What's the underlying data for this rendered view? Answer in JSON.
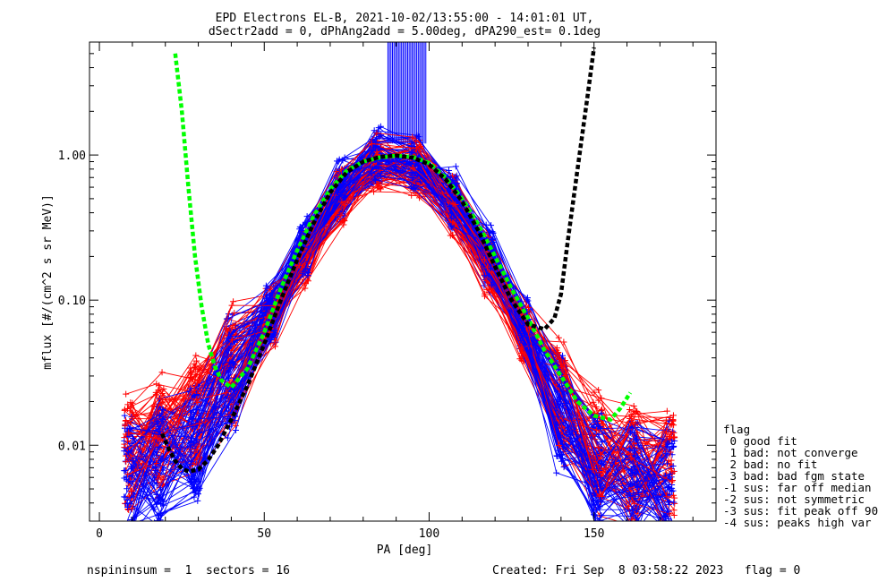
{
  "header": {
    "title": "EPD Electrons EL-B, 2021-10-02/13:55:00 - 14:01:01 UT,",
    "subtitle": "dSectr2add = 0, dPhAng2add = 5.00deg, dPA290_est=   0.1deg"
  },
  "footer": {
    "left": "nspininsum =  1  sectors = 16",
    "right": "Created: Fri Sep  8 03:58:22 2023   flag = 0"
  },
  "legend": {
    "title": "flag",
    "items": [
      " 0 good fit",
      " 1 bad: not converge",
      " 2 bad: no fit",
      " 3 bad: bad fgm state",
      "-1 sus: far off median",
      "-2 sus: not symmetric",
      "-3 sus: fit peak off 90",
      "-4 sus: peaks high var"
    ]
  },
  "colors": {
    "red": "#ff0000",
    "blue": "#0000ff",
    "green": "#00ff00",
    "black": "#000000"
  },
  "chart_data": {
    "type": "line",
    "xlabel": "PA [deg]",
    "ylabel": "mflux [#/(cm^2 s sr MeV)]",
    "xlim": [
      -3,
      187
    ],
    "ylim": [
      0.003,
      6.0
    ],
    "yscale": "log",
    "xticks": [
      0,
      50,
      100,
      150
    ],
    "xtick_labels": [
      "0",
      "50",
      "100",
      "150"
    ],
    "yticks": [
      0.01,
      0.1,
      1.0
    ],
    "ytick_labels": [
      "0.01",
      "0.10",
      "1.00"
    ],
    "pa_bins": [
      9,
      18,
      29,
      40,
      52,
      62,
      73,
      84,
      96,
      107,
      118,
      129,
      140,
      151,
      162,
      173
    ],
    "series": [
      {
        "color": "red",
        "profile": [
          0.009,
          0.012,
          0.016,
          0.035,
          0.075,
          0.2,
          0.5,
          0.85,
          0.8,
          0.45,
          0.17,
          0.06,
          0.02,
          0.009,
          0.007,
          0.0065
        ],
        "count": 60
      },
      {
        "color": "blue",
        "profile": [
          0.006,
          0.008,
          0.011,
          0.03,
          0.08,
          0.23,
          0.6,
          0.95,
          0.85,
          0.5,
          0.2,
          0.065,
          0.018,
          0.007,
          0.006,
          0.0055
        ],
        "count": 70
      }
    ],
    "fit_curves": [
      {
        "color": "green",
        "x": [
          23,
          25,
          27,
          29,
          31,
          33,
          35,
          37,
          40,
          45,
          50,
          55,
          60,
          65,
          70,
          75,
          80,
          85,
          90,
          95,
          100,
          105,
          110,
          115,
          120,
          125,
          130,
          135,
          140,
          145,
          150,
          155,
          158,
          161
        ],
        "y": [
          5.0,
          2.0,
          0.6,
          0.2,
          0.09,
          0.05,
          0.035,
          0.028,
          0.025,
          0.034,
          0.06,
          0.12,
          0.22,
          0.38,
          0.58,
          0.78,
          0.9,
          0.96,
          0.99,
          0.97,
          0.88,
          0.7,
          0.5,
          0.33,
          0.2,
          0.12,
          0.075,
          0.045,
          0.03,
          0.02,
          0.016,
          0.015,
          0.018,
          0.023
        ]
      },
      {
        "color": "black",
        "x": [
          19,
          21,
          23,
          25,
          27,
          30,
          33,
          36,
          40,
          45,
          50,
          55,
          60,
          65,
          70,
          75,
          80,
          85,
          90,
          95,
          100,
          105,
          110,
          115,
          120,
          125,
          130,
          135,
          138,
          140,
          142,
          145,
          148,
          150
        ],
        "y": [
          0.012,
          0.0095,
          0.0078,
          0.0069,
          0.0066,
          0.0068,
          0.0079,
          0.01,
          0.015,
          0.026,
          0.05,
          0.1,
          0.19,
          0.34,
          0.55,
          0.76,
          0.9,
          0.97,
          0.99,
          0.96,
          0.86,
          0.68,
          0.48,
          0.3,
          0.17,
          0.1,
          0.068,
          0.063,
          0.075,
          0.11,
          0.25,
          0.8,
          2.5,
          5.5
        ]
      }
    ],
    "spike": {
      "x_range": [
        87.5,
        99
      ],
      "y_from": 1.2,
      "color": "blue",
      "count": 26
    }
  }
}
